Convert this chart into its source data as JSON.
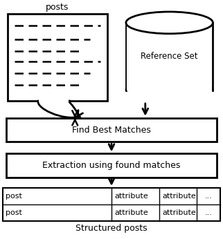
{
  "bg_color": "#ffffff",
  "posts_label": "posts",
  "ref_set_label": "Reference Set",
  "box1_label": "Find Best Matches",
  "box2_label": "Extraction using found matches",
  "table_rows": [
    [
      "post",
      "attribute",
      "attribute",
      "..."
    ],
    [
      "post",
      "attribute",
      "attribute",
      "..."
    ]
  ],
  "table_footer": "Structured posts",
  "line_color": "#000000",
  "box_facecolor": "#ffffff"
}
